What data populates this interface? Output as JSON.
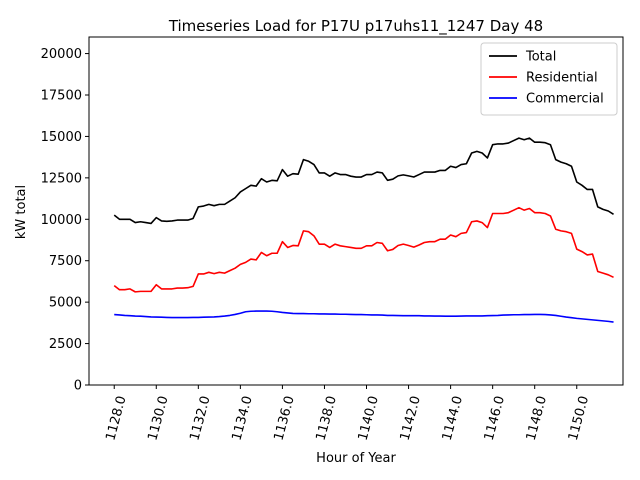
{
  "chart_data": {
    "type": "line",
    "title": "Timeseries Load for P17U p17uhs11_1247  Day 48",
    "xlabel": "Hour of Year",
    "ylabel": "kW total",
    "xlim": [
      1126.8,
      1152.2
    ],
    "ylim": [
      0,
      21000
    ],
    "xticks": [
      1128,
      1130,
      1132,
      1134,
      1136,
      1138,
      1140,
      1142,
      1144,
      1146,
      1148,
      1150
    ],
    "xtick_labels": [
      "1128.0",
      "1130.0",
      "1132.0",
      "1134.0",
      "1136.0",
      "1138.0",
      "1140.0",
      "1142.0",
      "1144.0",
      "1146.0",
      "1148.0",
      "1150.0"
    ],
    "yticks": [
      0,
      2500,
      5000,
      7500,
      10000,
      12500,
      15000,
      17500,
      20000
    ],
    "ytick_labels": [
      "0",
      "2500",
      "5000",
      "7500",
      "10000",
      "12500",
      "15000",
      "17500",
      "20000"
    ],
    "legend_position": "top-right",
    "x_start": 1128.0,
    "x_step": 0.25,
    "series": [
      {
        "name": "Total",
        "color": "#000000",
        "values": [
          10250,
          10000,
          10000,
          10000,
          9800,
          9850,
          9800,
          9750,
          10100,
          9900,
          9880,
          9900,
          9950,
          9950,
          9950,
          10050,
          10750,
          10800,
          10900,
          10820,
          10900,
          10900,
          11100,
          11300,
          11650,
          11850,
          12050,
          12000,
          12450,
          12250,
          12350,
          12320,
          13000,
          12600,
          12750,
          12720,
          13600,
          13500,
          13300,
          12800,
          12800,
          12600,
          12800,
          12700,
          12700,
          12600,
          12550,
          12550,
          12700,
          12700,
          12850,
          12800,
          12350,
          12420,
          12620,
          12680,
          12620,
          12550,
          12700,
          12850,
          12850,
          12850,
          12950,
          12950,
          13200,
          13120,
          13300,
          13350,
          14000,
          14100,
          14000,
          13700,
          14500,
          14550,
          14550,
          14600,
          14750,
          14900,
          14800,
          14900,
          14650,
          14650,
          14620,
          14500,
          13600,
          13450,
          13350,
          13200,
          12250,
          12050,
          11800,
          11800,
          10750,
          10600,
          10500,
          10300
        ]
      },
      {
        "name": "Residential",
        "color": "#ff0000",
        "values": [
          6000,
          5750,
          5750,
          5800,
          5620,
          5650,
          5650,
          5650,
          6050,
          5800,
          5800,
          5800,
          5850,
          5850,
          5870,
          5950,
          6700,
          6700,
          6800,
          6720,
          6800,
          6750,
          6900,
          7050,
          7280,
          7400,
          7600,
          7550,
          8000,
          7800,
          7950,
          7950,
          8650,
          8300,
          8420,
          8400,
          9300,
          9250,
          9000,
          8500,
          8500,
          8300,
          8500,
          8400,
          8350,
          8300,
          8250,
          8250,
          8400,
          8400,
          8600,
          8550,
          8100,
          8180,
          8420,
          8500,
          8420,
          8320,
          8450,
          8600,
          8650,
          8650,
          8800,
          8800,
          9050,
          8950,
          9150,
          9200,
          9850,
          9900,
          9800,
          9500,
          10350,
          10350,
          10350,
          10400,
          10550,
          10700,
          10550,
          10650,
          10400,
          10400,
          10350,
          10200,
          9400,
          9300,
          9250,
          9150,
          8200,
          8050,
          7850,
          7900,
          6850,
          6750,
          6650,
          6500
        ]
      },
      {
        "name": "Commercial",
        "color": "#0000ff",
        "values": [
          4250,
          4230,
          4200,
          4180,
          4160,
          4150,
          4130,
          4110,
          4100,
          4090,
          4080,
          4070,
          4070,
          4070,
          4070,
          4080,
          4080,
          4090,
          4100,
          4110,
          4130,
          4160,
          4200,
          4260,
          4330,
          4420,
          4450,
          4460,
          4460,
          4460,
          4450,
          4420,
          4380,
          4350,
          4320,
          4310,
          4310,
          4300,
          4300,
          4290,
          4290,
          4280,
          4280,
          4270,
          4270,
          4260,
          4250,
          4250,
          4240,
          4230,
          4230,
          4220,
          4200,
          4200,
          4190,
          4180,
          4180,
          4180,
          4180,
          4170,
          4170,
          4160,
          4160,
          4150,
          4150,
          4150,
          4160,
          4170,
          4170,
          4170,
          4170,
          4180,
          4190,
          4200,
          4220,
          4230,
          4240,
          4240,
          4250,
          4250,
          4260,
          4260,
          4250,
          4230,
          4200,
          4150,
          4100,
          4060,
          4020,
          3990,
          3960,
          3930,
          3900,
          3870,
          3840,
          3800
        ]
      }
    ]
  }
}
